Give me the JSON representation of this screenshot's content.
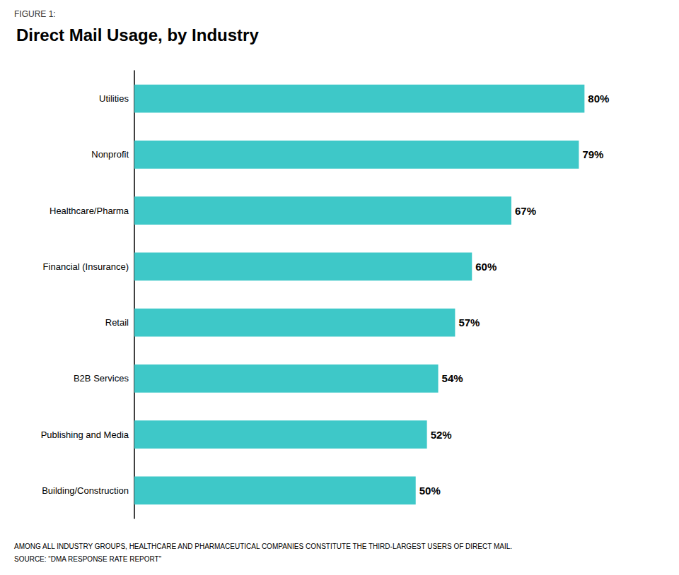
{
  "chart_data": {
    "type": "bar",
    "orientation": "horizontal",
    "title": "Direct Mail Usage, by Industry",
    "annotations": [
      "FIGURE 1:",
      "AMONG ALL INDUSTRY GROUPS, HEALTHCARE AND PHARMACEUTICAL COMPANIES CONSTITUTE THE THIRD-LARGEST USERS OF DIRECT MAIL.",
      "SOURCE: “DMA RESPONSE RATE REPORT”"
    ],
    "categories": [
      "Utilities",
      "Nonprofit",
      "Healthcare/Pharma",
      "Financial (Insurance)",
      "Retail",
      "B2B Services",
      "Publishing and Media",
      "Building/Construction"
    ],
    "values": [
      80,
      79,
      67,
      60,
      57,
      54,
      52,
      50
    ],
    "value_labels": [
      "80%",
      "79%",
      "67%",
      "60%",
      "57%",
      "54%",
      "52%",
      "50%"
    ],
    "data_labels": true,
    "color": "#3EC8C8",
    "xlim": [
      0,
      88
    ],
    "grid": false,
    "tick_labels": "y"
  }
}
